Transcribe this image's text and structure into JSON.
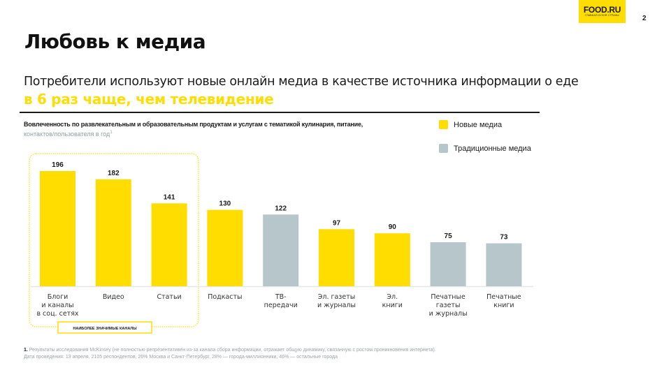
{
  "logo": {
    "main": "FOOD.RU",
    "sub": "главная кухня страны"
  },
  "page_number": "2",
  "title": "Любовь к медиа",
  "subtitle": "Потребители используют новые онлайн медиа в качестве источника информации о еде",
  "highlight": "в 6 раз чаще, чем телевидение",
  "metric": {
    "main": "Вовлеченность по развлекательным и образовательным продуктам и услугам с тематикой кулинария, питание,",
    "unit": "контактов/пользователя в год",
    "unit_sup": "1"
  },
  "colors": {
    "new_media": "#ffdd00",
    "traditional_media": "#b6c6cb",
    "text": "#1a1a1a",
    "muted": "#8f9ea5"
  },
  "legend": [
    {
      "label": "Новые медиа",
      "color": "#ffdd00"
    },
    {
      "label": "Традиционные медиа",
      "color": "#b6c6cb"
    }
  ],
  "highlight_group": {
    "label": "НАИБОЛЕЕ ЗНАЧИМЫЕ КАНАЛЫ",
    "count": 3
  },
  "chart_data": {
    "type": "bar",
    "title": "Вовлеченность по развлекательным и образовательным продуктам и услугам с тематикой кулинария, питание",
    "ylabel": "контактов/пользователя в год",
    "xlabel": "",
    "ylim": [
      0,
      196
    ],
    "grid": false,
    "legend_position": "top-right",
    "categories": [
      [
        "Блоги",
        "и каналы",
        "в соц. сетях"
      ],
      [
        "Видео"
      ],
      [
        "Статьи"
      ],
      [
        "Подкасты"
      ],
      [
        "ТВ-",
        "передачи"
      ],
      [
        "Эл. газеты",
        "и журналы"
      ],
      [
        "Эл.",
        "книги"
      ],
      [
        "Печатные",
        "газеты",
        "и журналы"
      ],
      [
        "Печатные",
        "книги"
      ]
    ],
    "values": [
      196,
      182,
      141,
      130,
      122,
      97,
      90,
      75,
      73
    ],
    "series_type": [
      "new",
      "new",
      "new",
      "new",
      "traditional",
      "new",
      "new",
      "traditional",
      "traditional"
    ],
    "series": [
      {
        "name": "Новые медиа",
        "indices": [
          0,
          1,
          2,
          3,
          5,
          6
        ]
      },
      {
        "name": "Традиционные медиа",
        "indices": [
          4,
          7,
          8
        ]
      }
    ]
  },
  "footnote": {
    "number": "1.",
    "line1": "Результаты исследования McKinsey (не полностью репрезентативен из-за канала сбора информации, отражает общую динамику, связанную с ростом проникновения интернета).",
    "line2": "Дата проведения: 13 апреля, 2105 респондентов, 26% Москва и Санкт-Петербург, 28% — города-миллионники, 46% — остальные города"
  }
}
